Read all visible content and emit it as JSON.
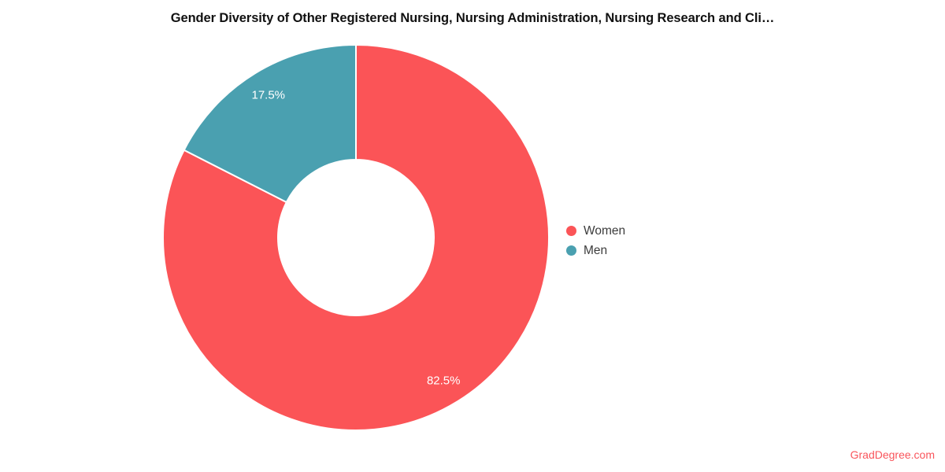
{
  "chart_data": {
    "type": "pie",
    "donut": true,
    "title": "Gender Diversity of Other Registered Nursing, Nursing Administration, Nursing Research and Cli…",
    "segments": [
      {
        "label": "Women",
        "value": 82.5,
        "display": "82.5%",
        "color": "#fb5457"
      },
      {
        "label": "Men",
        "value": 17.5,
        "display": "17.5%",
        "color": "#4aa0b0"
      }
    ],
    "start_angle_deg": 0,
    "direction": "clockwise",
    "inner_radius_ratio": 0.4,
    "slice_label_color": "#ffffff",
    "legend_position": "right",
    "background": "#ffffff"
  },
  "watermark": {
    "text": "GradDegree.com",
    "color": "#f9545b"
  }
}
